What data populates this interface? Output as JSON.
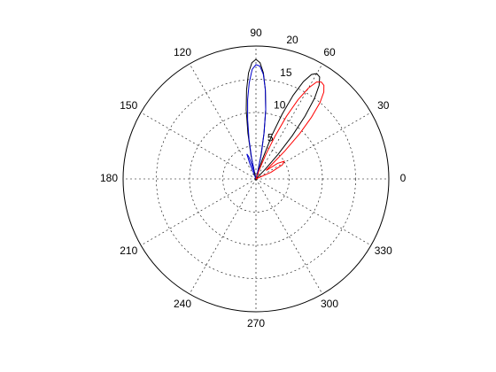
{
  "chart_data": {
    "type": "polar",
    "rlim": [
      0,
      20
    ],
    "rticks": [
      5,
      10,
      15,
      20
    ],
    "thetaticks": [
      0,
      30,
      60,
      90,
      120,
      150,
      180,
      210,
      240,
      270,
      300,
      330
    ],
    "grid": true,
    "series": [
      {
        "color": "#000000",
        "theta": [
          74,
          76,
          78,
          80,
          82,
          84,
          86,
          88,
          90,
          92,
          94,
          96,
          98,
          100,
          102,
          104,
          44,
          46,
          48,
          50,
          52,
          54,
          56,
          58,
          60,
          62,
          64,
          66,
          68,
          70,
          72,
          74
        ],
        "r": [
          0,
          1,
          3.5,
          7,
          10.5,
          13.5,
          16,
          17.5,
          18,
          17.5,
          16,
          13.5,
          10.5,
          7,
          3.5,
          0,
          0,
          2,
          5,
          8.5,
          12,
          15,
          17,
          18.1,
          18.3,
          17.8,
          16.3,
          13.8,
          10.5,
          7,
          3,
          0
        ]
      },
      {
        "color": "#0000cc",
        "theta": [
          72,
          76,
          78,
          80,
          82,
          84,
          86,
          88,
          90,
          92,
          94,
          96,
          98,
          100,
          102,
          104,
          106,
          108,
          110,
          112,
          114
        ],
        "r": [
          0,
          1.5,
          4,
          7,
          10.5,
          13.5,
          15.8,
          17,
          17.2,
          16.5,
          14.5,
          12,
          9,
          6,
          3,
          1,
          2,
          3.5,
          4,
          2.5,
          0
        ]
      },
      {
        "color": "#ff0000",
        "theta": [
          20,
          24,
          28,
          32,
          36,
          40,
          42,
          44,
          46,
          48,
          50,
          52,
          54,
          56,
          58,
          60,
          62,
          64,
          66,
          68,
          70,
          72
        ],
        "r": [
          0,
          2.5,
          4.5,
          5,
          4,
          2,
          3,
          6,
          9.5,
          12.5,
          15,
          16.6,
          17.4,
          17.6,
          17.2,
          15.8,
          13.5,
          10.5,
          7,
          4,
          1.5,
          0
        ]
      }
    ]
  }
}
